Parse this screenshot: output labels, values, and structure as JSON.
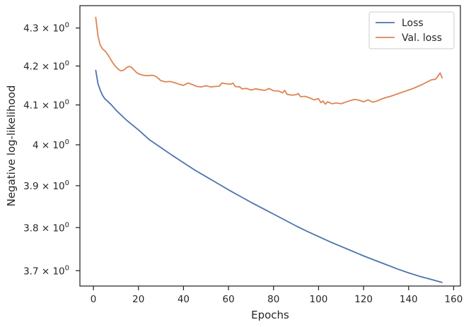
{
  "chart_data": {
    "type": "line",
    "xlabel": "Epochs",
    "ylabel": "Negative log-likelihood",
    "y_scale": "log",
    "xlim": [
      -6,
      163
    ],
    "ylim": [
      3.665,
      4.36
    ],
    "grid": false,
    "legend_position": "top-right",
    "x_ticks": [
      0,
      20,
      40,
      60,
      80,
      100,
      120,
      140,
      160
    ],
    "x_tick_labels": [
      "0",
      "20",
      "40",
      "60",
      "80",
      "100",
      "120",
      "140",
      "160"
    ],
    "y_ticks": [
      {
        "value": 3.7,
        "mantissa": "3.7"
      },
      {
        "value": 3.8,
        "mantissa": "3.8"
      },
      {
        "value": 3.9,
        "mantissa": "3.9"
      },
      {
        "value": 4.0,
        "mantissa": "4"
      },
      {
        "value": 4.1,
        "mantissa": "4.1"
      },
      {
        "value": 4.2,
        "mantissa": "4.2"
      },
      {
        "value": 4.3,
        "mantissa": "4.3"
      }
    ],
    "y_tick_suffix": "10",
    "y_tick_exponent": "0",
    "y_tick_times": "×",
    "series": [
      {
        "name": "Loss",
        "color": "#4c72b0",
        "points": [
          [
            1,
            4.19
          ],
          [
            2,
            4.155
          ],
          [
            3,
            4.138
          ],
          [
            4,
            4.125
          ],
          [
            5,
            4.116
          ],
          [
            6,
            4.111
          ],
          [
            8,
            4.1
          ],
          [
            10,
            4.087
          ],
          [
            12,
            4.076
          ],
          [
            15,
            4.06
          ],
          [
            20,
            4.037
          ],
          [
            25,
            4.012
          ],
          [
            30,
            3.993
          ],
          [
            35,
            3.974
          ],
          [
            40,
            3.956
          ],
          [
            45,
            3.938
          ],
          [
            50,
            3.922
          ],
          [
            55,
            3.906
          ],
          [
            60,
            3.89
          ],
          [
            65,
            3.875
          ],
          [
            70,
            3.86
          ],
          [
            75,
            3.846
          ],
          [
            80,
            3.832
          ],
          [
            85,
            3.818
          ],
          [
            90,
            3.804
          ],
          [
            95,
            3.791
          ],
          [
            100,
            3.779
          ],
          [
            105,
            3.767
          ],
          [
            110,
            3.756
          ],
          [
            115,
            3.745
          ],
          [
            120,
            3.734
          ],
          [
            125,
            3.724
          ],
          [
            130,
            3.714
          ],
          [
            135,
            3.704
          ],
          [
            140,
            3.695
          ],
          [
            145,
            3.687
          ],
          [
            150,
            3.68
          ],
          [
            155,
            3.673
          ]
        ]
      },
      {
        "name": "Val. loss",
        "color": "#dd8452",
        "points": [
          [
            1,
            4.33
          ],
          [
            2,
            4.28
          ],
          [
            3,
            4.255
          ],
          [
            4,
            4.245
          ],
          [
            5,
            4.24
          ],
          [
            6,
            4.233
          ],
          [
            7,
            4.224
          ],
          [
            8,
            4.214
          ],
          [
            9,
            4.205
          ],
          [
            10,
            4.198
          ],
          [
            11,
            4.192
          ],
          [
            12,
            4.188
          ],
          [
            13,
            4.188
          ],
          [
            14,
            4.192
          ],
          [
            15,
            4.197
          ],
          [
            16,
            4.199
          ],
          [
            17,
            4.196
          ],
          [
            18,
            4.19
          ],
          [
            19,
            4.184
          ],
          [
            20,
            4.18
          ],
          [
            22,
            4.176
          ],
          [
            24,
            4.175
          ],
          [
            26,
            4.176
          ],
          [
            27,
            4.175
          ],
          [
            28,
            4.172
          ],
          [
            29,
            4.167
          ],
          [
            30,
            4.162
          ],
          [
            32,
            4.159
          ],
          [
            34,
            4.16
          ],
          [
            36,
            4.157
          ],
          [
            38,
            4.153
          ],
          [
            40,
            4.15
          ],
          [
            42,
            4.156
          ],
          [
            44,
            4.152
          ],
          [
            46,
            4.147
          ],
          [
            48,
            4.146
          ],
          [
            50,
            4.149
          ],
          [
            52,
            4.146
          ],
          [
            54,
            4.147
          ],
          [
            56,
            4.148
          ],
          [
            57,
            4.156
          ],
          [
            59,
            4.154
          ],
          [
            61,
            4.153
          ],
          [
            62,
            4.156
          ],
          [
            63,
            4.147
          ],
          [
            65,
            4.146
          ],
          [
            66,
            4.141
          ],
          [
            68,
            4.142
          ],
          [
            70,
            4.138
          ],
          [
            72,
            4.141
          ],
          [
            74,
            4.139
          ],
          [
            76,
            4.137
          ],
          [
            78,
            4.142
          ],
          [
            80,
            4.136
          ],
          [
            82,
            4.136
          ],
          [
            84,
            4.131
          ],
          [
            85,
            4.137
          ],
          [
            86,
            4.127
          ],
          [
            88,
            4.125
          ],
          [
            90,
            4.126
          ],
          [
            91,
            4.129
          ],
          [
            92,
            4.121
          ],
          [
            94,
            4.122
          ],
          [
            96,
            4.118
          ],
          [
            98,
            4.113
          ],
          [
            100,
            4.116
          ],
          [
            101,
            4.106
          ],
          [
            102,
            4.11
          ],
          [
            103,
            4.102
          ],
          [
            104,
            4.108
          ],
          [
            106,
            4.103
          ],
          [
            108,
            4.105
          ],
          [
            110,
            4.103
          ],
          [
            112,
            4.107
          ],
          [
            114,
            4.111
          ],
          [
            116,
            4.114
          ],
          [
            118,
            4.112
          ],
          [
            120,
            4.108
          ],
          [
            122,
            4.113
          ],
          [
            124,
            4.107
          ],
          [
            126,
            4.11
          ],
          [
            128,
            4.115
          ],
          [
            130,
            4.119
          ],
          [
            132,
            4.122
          ],
          [
            134,
            4.126
          ],
          [
            136,
            4.13
          ],
          [
            138,
            4.134
          ],
          [
            140,
            4.138
          ],
          [
            142,
            4.142
          ],
          [
            144,
            4.147
          ],
          [
            146,
            4.152
          ],
          [
            148,
            4.158
          ],
          [
            150,
            4.164
          ],
          [
            152,
            4.166
          ],
          [
            154,
            4.182
          ],
          [
            155,
            4.168
          ]
        ]
      }
    ]
  }
}
